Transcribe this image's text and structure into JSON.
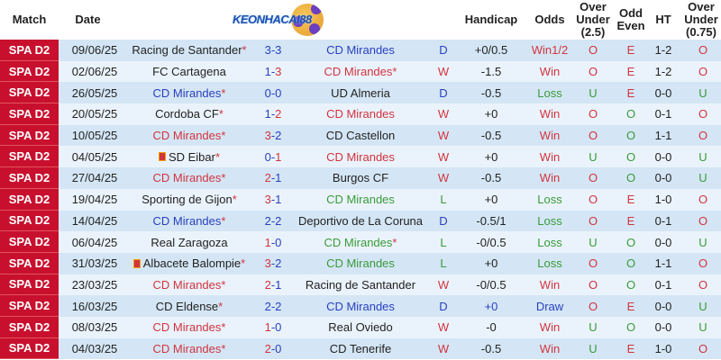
{
  "logo_text": "KEONHACAI88",
  "headers": {
    "match": "Match",
    "date": "Date",
    "handicap": "Handicap",
    "odds": "Odds",
    "over_under": "Over Under (2.5)",
    "odd_even": "Odd Even",
    "ht": "HT",
    "over_under_075": "Over Under (0.75)"
  },
  "colors": {
    "league_bg": "#c8102e",
    "win": "#d2343f",
    "loss": "#3a9a3a",
    "draw": "#2a3fbf"
  },
  "rows": [
    {
      "league": "SPA D2",
      "date": "09/06/25",
      "home": "Racing de Santander",
      "home_star": true,
      "hs": "3",
      "as": "3",
      "away": "CD Mirandes",
      "away_star": false,
      "result": "D",
      "handicap": "+0/0.5",
      "odds": "Win1/2",
      "ou": "O",
      "oe": "E",
      "ht": "1-2",
      "ou075": "O"
    },
    {
      "league": "SPA D2",
      "date": "02/06/25",
      "home": "FC Cartagena",
      "home_star": false,
      "hs": "1",
      "as": "3",
      "away": "CD Mirandes",
      "away_star": true,
      "result": "W",
      "handicap": "-1.5",
      "odds": "Win",
      "ou": "O",
      "oe": "E",
      "ht": "1-2",
      "ou075": "O"
    },
    {
      "league": "SPA D2",
      "date": "26/05/25",
      "home": "CD Mirandes",
      "home_star": true,
      "hs": "0",
      "as": "0",
      "away": "UD Almeria",
      "away_star": false,
      "result": "D",
      "handicap": "-0.5",
      "odds": "Loss",
      "ou": "U",
      "oe": "E",
      "ht": "0-0",
      "ou075": "U"
    },
    {
      "league": "SPA D2",
      "date": "20/05/25",
      "home": "Cordoba CF",
      "home_star": true,
      "hs": "1",
      "as": "2",
      "away": "CD Mirandes",
      "away_star": false,
      "result": "W",
      "handicap": "+0",
      "odds": "Win",
      "ou": "O",
      "oe": "O",
      "ht": "0-1",
      "ou075": "O"
    },
    {
      "league": "SPA D2",
      "date": "10/05/25",
      "home": "CD Mirandes",
      "home_star": true,
      "hs": "3",
      "as": "2",
      "away": "CD Castellon",
      "away_star": false,
      "result": "W",
      "handicap": "-0.5",
      "odds": "Win",
      "ou": "O",
      "oe": "O",
      "ht": "1-1",
      "ou075": "O"
    },
    {
      "league": "SPA D2",
      "date": "04/05/25",
      "home": "SD Eibar",
      "home_flag": true,
      "home_star": true,
      "hs": "0",
      "as": "1",
      "away": "CD Mirandes",
      "away_star": false,
      "result": "W",
      "handicap": "+0",
      "odds": "Win",
      "ou": "U",
      "oe": "O",
      "ht": "0-0",
      "ou075": "U"
    },
    {
      "league": "SPA D2",
      "date": "27/04/25",
      "home": "CD Mirandes",
      "home_star": true,
      "hs": "2",
      "as": "1",
      "away": "Burgos CF",
      "away_star": false,
      "result": "W",
      "handicap": "-0.5",
      "odds": "Win",
      "ou": "O",
      "oe": "O",
      "ht": "0-0",
      "ou075": "U"
    },
    {
      "league": "SPA D2",
      "date": "19/04/25",
      "home": "Sporting de Gijon",
      "home_star": true,
      "hs": "3",
      "as": "1",
      "away": "CD Mirandes",
      "away_star": false,
      "result": "L",
      "handicap": "+0",
      "odds": "Loss",
      "ou": "O",
      "oe": "E",
      "ht": "1-0",
      "ou075": "O"
    },
    {
      "league": "SPA D2",
      "date": "14/04/25",
      "home": "CD Mirandes",
      "home_star": true,
      "hs": "2",
      "as": "2",
      "away": "Deportivo de La Coruna",
      "away_star": false,
      "result": "D",
      "handicap": "-0.5/1",
      "odds": "Loss",
      "ou": "O",
      "oe": "E",
      "ht": "0-1",
      "ou075": "O"
    },
    {
      "league": "SPA D2",
      "date": "06/04/25",
      "home": "Real Zaragoza",
      "home_star": false,
      "hs": "1",
      "as": "0",
      "away": "CD Mirandes",
      "away_star": true,
      "result": "L",
      "handicap": "-0/0.5",
      "odds": "Loss",
      "ou": "U",
      "oe": "O",
      "ht": "0-0",
      "ou075": "U"
    },
    {
      "league": "SPA D2",
      "date": "31/03/25",
      "home": "Albacete Balompie",
      "home_flag": true,
      "home_star": true,
      "hs": "3",
      "as": "2",
      "away": "CD Mirandes",
      "away_star": false,
      "result": "L",
      "handicap": "+0",
      "odds": "Loss",
      "ou": "O",
      "oe": "O",
      "ht": "1-1",
      "ou075": "O"
    },
    {
      "league": "SPA D2",
      "date": "23/03/25",
      "home": "CD Mirandes",
      "home_star": true,
      "hs": "2",
      "as": "1",
      "away": "Racing de Santander",
      "away_star": false,
      "result": "W",
      "handicap": "-0/0.5",
      "odds": "Win",
      "ou": "O",
      "oe": "O",
      "ht": "0-1",
      "ou075": "O"
    },
    {
      "league": "SPA D2",
      "date": "16/03/25",
      "home": "CD Eldense",
      "home_star": true,
      "hs": "2",
      "as": "2",
      "away": "CD Mirandes",
      "away_star": false,
      "result": "D",
      "handicap": "+0",
      "odds": "Draw",
      "ou": "O",
      "oe": "E",
      "ht": "0-0",
      "ou075": "U"
    },
    {
      "league": "SPA D2",
      "date": "08/03/25",
      "home": "CD Mirandes",
      "home_star": true,
      "hs": "1",
      "as": "0",
      "away": "Real Oviedo",
      "away_star": false,
      "result": "W",
      "handicap": "-0",
      "odds": "Win",
      "ou": "U",
      "oe": "O",
      "ht": "0-0",
      "ou075": "U"
    },
    {
      "league": "SPA D2",
      "date": "04/03/25",
      "home": "CD Mirandes",
      "home_star": true,
      "hs": "2",
      "as": "0",
      "away": "CD Tenerife",
      "away_star": false,
      "result": "W",
      "handicap": "-0.5",
      "odds": "Win",
      "ou": "U",
      "oe": "E",
      "ht": "1-0",
      "ou075": "O"
    }
  ]
}
